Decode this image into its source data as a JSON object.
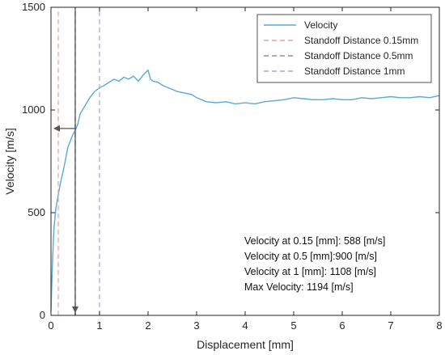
{
  "chart_data": {
    "type": "line",
    "title": "",
    "xlabel": "Displacement [mm]",
    "ylabel": "Velocity [m/s]",
    "xlim": [
      0,
      8
    ],
    "ylim": [
      0,
      1500
    ],
    "xticks": [
      0,
      1,
      2,
      3,
      4,
      5,
      6,
      7,
      8
    ],
    "yticks": [
      0,
      500,
      1000,
      1500
    ],
    "grid": false,
    "legend_position": "top-right",
    "series": [
      {
        "name": "Velocity",
        "color": "#5aa9d6",
        "style": "solid",
        "x": [
          0,
          0.03,
          0.06,
          0.1,
          0.15,
          0.2,
          0.25,
          0.3,
          0.35,
          0.4,
          0.45,
          0.5,
          0.55,
          0.6,
          0.7,
          0.8,
          0.9,
          1.0,
          1.1,
          1.2,
          1.3,
          1.4,
          1.5,
          1.6,
          1.7,
          1.8,
          1.9,
          2.0,
          2.05,
          2.1,
          2.2,
          2.3,
          2.4,
          2.5,
          2.6,
          2.7,
          2.8,
          2.9,
          3.0,
          3.2,
          3.4,
          3.6,
          3.8,
          4.0,
          4.2,
          4.4,
          4.6,
          4.8,
          5.0,
          5.2,
          5.4,
          5.6,
          5.8,
          6.0,
          6.2,
          6.4,
          6.6,
          6.8,
          7.0,
          7.2,
          7.4,
          7.6,
          7.8,
          8.0
        ],
        "y": [
          20,
          250,
          420,
          520,
          588,
          650,
          700,
          760,
          820,
          850,
          880,
          900,
          930,
          980,
          1020,
          1060,
          1090,
          1108,
          1120,
          1135,
          1150,
          1140,
          1160,
          1150,
          1165,
          1140,
          1170,
          1194,
          1150,
          1140,
          1135,
          1120,
          1110,
          1100,
          1090,
          1085,
          1080,
          1075,
          1060,
          1040,
          1035,
          1040,
          1030,
          1035,
          1030,
          1040,
          1045,
          1050,
          1060,
          1055,
          1050,
          1050,
          1055,
          1050,
          1050,
          1060,
          1055,
          1060,
          1065,
          1060,
          1060,
          1065,
          1060,
          1070
        ]
      },
      {
        "name": "Standoff Distance 0.15mm",
        "color": "#e8a0a0",
        "style": "dashed",
        "x": [
          0.15,
          0.15
        ],
        "y": [
          0,
          1500
        ]
      },
      {
        "name": "Standoff Distance 0.5mm",
        "color": "#000000",
        "style": "dashed",
        "x": [
          0.5,
          0.5
        ],
        "y": [
          0,
          1500
        ]
      },
      {
        "name": "Standoff Distance 1mm",
        "color": "#a3a3e0",
        "style": "dashed",
        "x": [
          1,
          1
        ],
        "y": [
          0,
          1500
        ]
      }
    ],
    "annotations": [
      {
        "id": "arrow-down",
        "from": [
          0.5,
          1500
        ],
        "to": [
          0.5,
          0
        ]
      },
      {
        "id": "arrow-left",
        "from": [
          0.5,
          910
        ],
        "to": [
          0,
          910
        ]
      }
    ]
  },
  "legend": {
    "items": [
      {
        "label": "Velocity",
        "color": "#5aa9d6",
        "style": "solid"
      },
      {
        "label": "Standoff Distance 0.15mm",
        "color": "#e8a0a0",
        "style": "dashed"
      },
      {
        "label": "Standoff Distance 0.5mm",
        "color": "#909090",
        "style": "dashed"
      },
      {
        "label": "Standoff Distance 1mm",
        "color": "#a3a3e0",
        "style": "dashed"
      }
    ]
  },
  "text_block": {
    "lines": [
      "Velocity at 0.15 [mm]: 588 [m/s]",
      "Velocity at  0.5 [mm]:900 [m/s]",
      "Velocity at 1 [mm]: 1108 [m/s]",
      "Max Velocity: 1194 [m/s]"
    ]
  }
}
